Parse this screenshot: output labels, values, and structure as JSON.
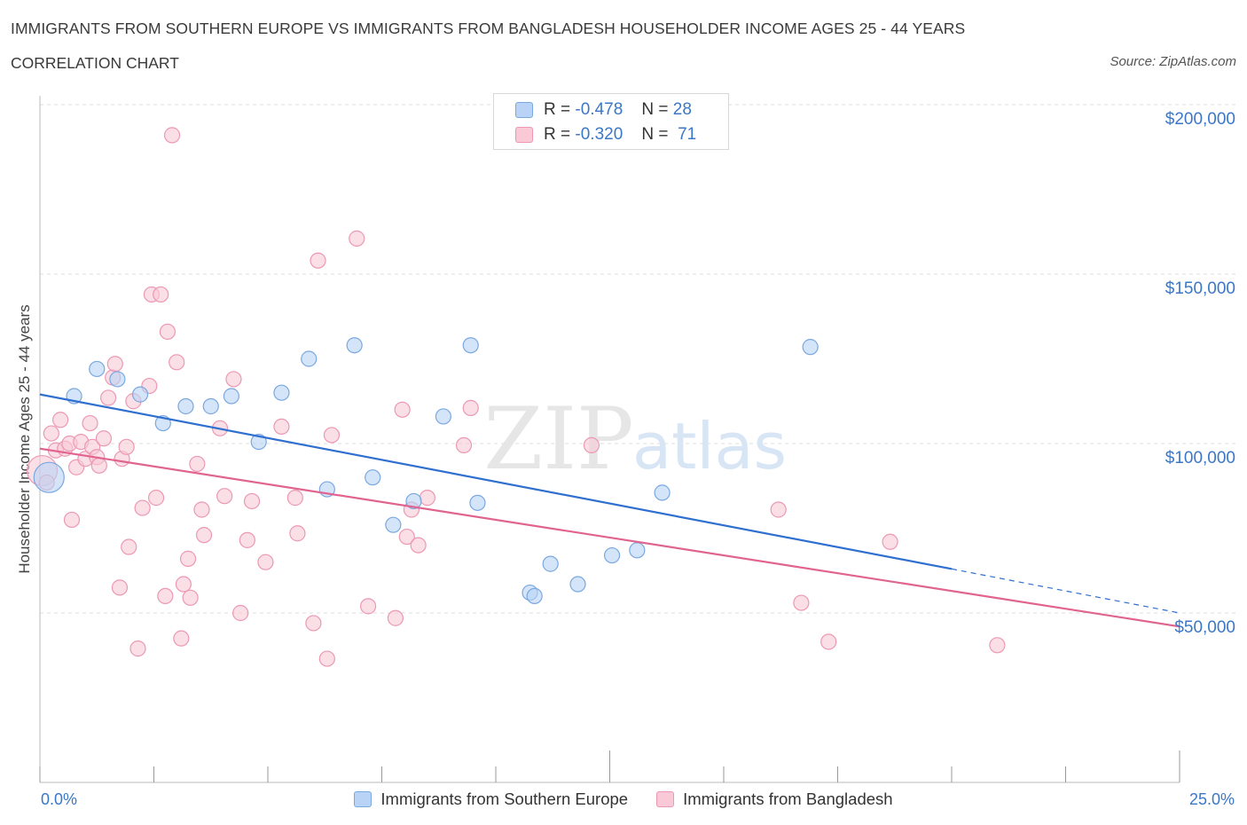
{
  "header": {
    "title": "IMMIGRANTS FROM SOUTHERN EUROPE VS IMMIGRANTS FROM BANGLADESH HOUSEHOLDER INCOME AGES 25 - 44 YEARS",
    "subtitle": "CORRELATION CHART",
    "source": "Source: ZipAtlas.com"
  },
  "watermark": {
    "part1": "ZIP",
    "part2": "atlas"
  },
  "stats_legend": {
    "rows": [
      {
        "r_label": "R =",
        "r_value": "-0.478",
        "n_label": "N =",
        "n_value": "28"
      },
      {
        "r_label": "R =",
        "r_value": "-0.320",
        "n_label": "N =",
        "n_value": "71"
      }
    ]
  },
  "colors": {
    "blue_fill": "#b8d3f5",
    "blue_stroke": "#7aa8e0",
    "blue_line": "#2f6fd0",
    "pink_fill": "#f9c9d7",
    "pink_stroke": "#ec98b3",
    "pink_line": "#e0648f",
    "tick_text": "#3a77c8",
    "grid": "#dddddd"
  },
  "chart_data": {
    "type": "scatter",
    "title": "IMMIGRANTS FROM SOUTHERN EUROPE VS IMMIGRANTS FROM BANGLADESH HOUSEHOLDER INCOME AGES 25 - 44 YEARS",
    "xlabel": "",
    "ylabel": "Householder Income Ages 25 - 44 years",
    "xlim": [
      0,
      25
    ],
    "ylim": [
      0,
      200000
    ],
    "x_tick_labels": [
      "0.0%",
      "25.0%"
    ],
    "y_tick_labels": [
      "$200,000",
      "$150,000",
      "$100,000",
      "$50,000"
    ],
    "y_ticks": [
      200000,
      150000,
      100000,
      50000
    ],
    "grid": true,
    "legend_position": "bottom",
    "series": [
      {
        "name": "Immigrants from Southern Europe",
        "color": "#b8d3f5",
        "trend": {
          "x": [
            0,
            20
          ],
          "y": [
            114500,
            63000
          ],
          "dashed_to": [
            25,
            50000
          ]
        },
        "points": [
          {
            "x": 0.2,
            "y": 90000,
            "big": true
          },
          {
            "x": 0.75,
            "y": 114000
          },
          {
            "x": 1.25,
            "y": 122000
          },
          {
            "x": 1.7,
            "y": 119000
          },
          {
            "x": 2.2,
            "y": 114500
          },
          {
            "x": 2.7,
            "y": 106000
          },
          {
            "x": 3.2,
            "y": 111000
          },
          {
            "x": 3.75,
            "y": 111000
          },
          {
            "x": 4.2,
            "y": 114000
          },
          {
            "x": 4.8,
            "y": 100500
          },
          {
            "x": 5.3,
            "y": 115000
          },
          {
            "x": 5.9,
            "y": 125000
          },
          {
            "x": 6.3,
            "y": 86500
          },
          {
            "x": 6.9,
            "y": 129000
          },
          {
            "x": 7.3,
            "y": 90000
          },
          {
            "x": 7.75,
            "y": 76000
          },
          {
            "x": 8.2,
            "y": 83000
          },
          {
            "x": 8.85,
            "y": 108000
          },
          {
            "x": 9.45,
            "y": 129000
          },
          {
            "x": 9.6,
            "y": 82500
          },
          {
            "x": 10.75,
            "y": 56000
          },
          {
            "x": 10.85,
            "y": 55000
          },
          {
            "x": 11.2,
            "y": 64500
          },
          {
            "x": 11.8,
            "y": 58500
          },
          {
            "x": 12.55,
            "y": 67000
          },
          {
            "x": 13.1,
            "y": 68500
          },
          {
            "x": 13.65,
            "y": 85500
          },
          {
            "x": 16.9,
            "y": 128500
          }
        ]
      },
      {
        "name": "Immigrants from Bangladesh",
        "color": "#f9c9d7",
        "trend": {
          "x": [
            0,
            25
          ],
          "y": [
            98500,
            46000
          ]
        },
        "points": [
          {
            "x": 0.05,
            "y": 92000,
            "big": true
          },
          {
            "x": 0.25,
            "y": 103000
          },
          {
            "x": 0.35,
            "y": 98000
          },
          {
            "x": 0.45,
            "y": 107000
          },
          {
            "x": 0.55,
            "y": 98500
          },
          {
            "x": 0.65,
            "y": 100000
          },
          {
            "x": 0.7,
            "y": 77500
          },
          {
            "x": 0.8,
            "y": 93000
          },
          {
            "x": 0.9,
            "y": 100500
          },
          {
            "x": 1.0,
            "y": 95500
          },
          {
            "x": 1.1,
            "y": 106000
          },
          {
            "x": 1.15,
            "y": 99000
          },
          {
            "x": 1.25,
            "y": 96000
          },
          {
            "x": 1.3,
            "y": 93500
          },
          {
            "x": 1.4,
            "y": 101500
          },
          {
            "x": 1.5,
            "y": 113500
          },
          {
            "x": 1.6,
            "y": 119500
          },
          {
            "x": 1.65,
            "y": 123500
          },
          {
            "x": 1.75,
            "y": 57500
          },
          {
            "x": 1.8,
            "y": 95500
          },
          {
            "x": 1.9,
            "y": 99000
          },
          {
            "x": 1.95,
            "y": 69500
          },
          {
            "x": 2.05,
            "y": 112500
          },
          {
            "x": 2.15,
            "y": 39500
          },
          {
            "x": 2.25,
            "y": 81000
          },
          {
            "x": 2.4,
            "y": 117000
          },
          {
            "x": 2.45,
            "y": 144000
          },
          {
            "x": 2.55,
            "y": 84000
          },
          {
            "x": 2.65,
            "y": 144000
          },
          {
            "x": 2.75,
            "y": 55000
          },
          {
            "x": 2.8,
            "y": 133000
          },
          {
            "x": 2.9,
            "y": 191000
          },
          {
            "x": 3.0,
            "y": 124000
          },
          {
            "x": 3.1,
            "y": 42500
          },
          {
            "x": 3.15,
            "y": 58500
          },
          {
            "x": 3.25,
            "y": 66000
          },
          {
            "x": 3.3,
            "y": 54500
          },
          {
            "x": 3.45,
            "y": 94000
          },
          {
            "x": 3.55,
            "y": 80500
          },
          {
            "x": 3.6,
            "y": 73000
          },
          {
            "x": 3.95,
            "y": 104500
          },
          {
            "x": 4.05,
            "y": 84500
          },
          {
            "x": 4.25,
            "y": 119000
          },
          {
            "x": 4.4,
            "y": 50000
          },
          {
            "x": 4.55,
            "y": 71500
          },
          {
            "x": 4.65,
            "y": 83000
          },
          {
            "x": 4.95,
            "y": 65000
          },
          {
            "x": 5.3,
            "y": 105000
          },
          {
            "x": 5.6,
            "y": 84000
          },
          {
            "x": 5.65,
            "y": 73500
          },
          {
            "x": 6.0,
            "y": 47000
          },
          {
            "x": 6.1,
            "y": 154000
          },
          {
            "x": 6.3,
            "y": 36500
          },
          {
            "x": 6.4,
            "y": 102500
          },
          {
            "x": 6.95,
            "y": 160500
          },
          {
            "x": 7.2,
            "y": 52000
          },
          {
            "x": 7.8,
            "y": 48500
          },
          {
            "x": 7.95,
            "y": 110000
          },
          {
            "x": 8.05,
            "y": 72500
          },
          {
            "x": 8.15,
            "y": 80500
          },
          {
            "x": 8.3,
            "y": 70000
          },
          {
            "x": 8.5,
            "y": 84000
          },
          {
            "x": 9.3,
            "y": 99500
          },
          {
            "x": 9.45,
            "y": 110500
          },
          {
            "x": 12.1,
            "y": 99500
          },
          {
            "x": 16.2,
            "y": 80500
          },
          {
            "x": 16.7,
            "y": 53000
          },
          {
            "x": 17.3,
            "y": 41500
          },
          {
            "x": 18.65,
            "y": 71000
          },
          {
            "x": 21.0,
            "y": 40500
          },
          {
            "x": 0.15,
            "y": 88500
          }
        ]
      }
    ]
  },
  "bottom_legend": {
    "items": [
      "Immigrants from Southern Europe",
      "Immigrants from Bangladesh"
    ]
  }
}
